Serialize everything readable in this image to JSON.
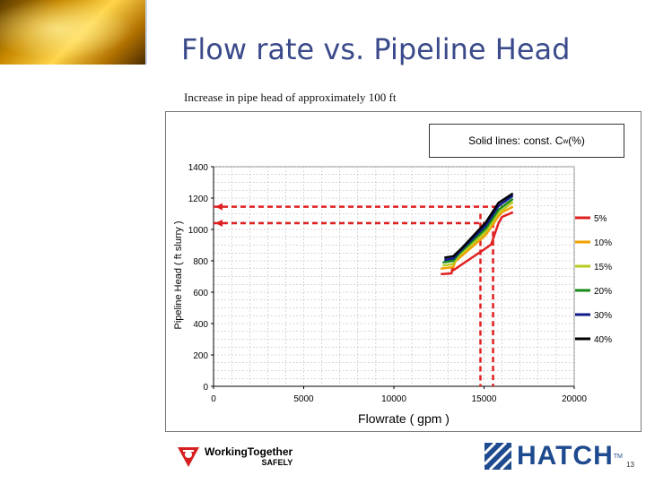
{
  "slide": {
    "title": "Flow rate vs. Pipeline Head",
    "subtitle": "Increase in pipe head of approximately 100 ft",
    "page_number": "13",
    "footer_left": {
      "line1": "WorkingTogether",
      "line2": "SAFELY"
    },
    "footer_right": "HATCH",
    "footer_right_tm": "TM"
  },
  "note": {
    "prefix": "Solid lines: const. C",
    "subscript": "w",
    "suffix": " (%)"
  },
  "chart_data": {
    "type": "line",
    "title": "",
    "xlabel": "Flowrate ( gpm )",
    "ylabel": "Pipeline Head ( ft slurry )",
    "xlim": [
      0,
      20000
    ],
    "ylim": [
      0,
      1400
    ],
    "x_ticks": [
      "0",
      "5000",
      "10000",
      "15000",
      "20000"
    ],
    "y_ticks": [
      "0",
      "200",
      "400",
      "600",
      "800",
      "1000",
      "1200",
      "1400"
    ],
    "grid": true,
    "legend_position": "right",
    "series": [
      {
        "name": "5%",
        "color": "#e02020",
        "points": [
          [
            12600,
            715
          ],
          [
            13200,
            720
          ],
          [
            13250,
            760
          ],
          [
            13300,
            740
          ],
          [
            15100,
            880
          ],
          [
            15400,
            905
          ],
          [
            15800,
            1040
          ],
          [
            16000,
            1080
          ],
          [
            16600,
            1110
          ]
        ]
      },
      {
        "name": "10%",
        "color": "#f0a000",
        "points": [
          [
            12600,
            750
          ],
          [
            13300,
            760
          ],
          [
            13400,
            795
          ],
          [
            15100,
            965
          ],
          [
            15800,
            1085
          ],
          [
            16000,
            1110
          ],
          [
            16600,
            1145
          ]
        ]
      },
      {
        "name": "15%",
        "color": "#b8cc20",
        "points": [
          [
            12700,
            770
          ],
          [
            13300,
            780
          ],
          [
            13500,
            820
          ],
          [
            15100,
            985
          ],
          [
            15800,
            1105
          ],
          [
            16600,
            1175
          ]
        ]
      },
      {
        "name": "20%",
        "color": "#1a8a1a",
        "points": [
          [
            12700,
            790
          ],
          [
            13300,
            800
          ],
          [
            13600,
            845
          ],
          [
            15100,
            1005
          ],
          [
            15800,
            1125
          ],
          [
            16600,
            1195
          ]
        ]
      },
      {
        "name": "30%",
        "color": "#101a8a",
        "points": [
          [
            12800,
            805
          ],
          [
            13300,
            815
          ],
          [
            13700,
            865
          ],
          [
            15100,
            1025
          ],
          [
            15800,
            1150
          ],
          [
            16600,
            1215
          ]
        ]
      },
      {
        "name": "40%",
        "color": "#000000",
        "points": [
          [
            12800,
            820
          ],
          [
            13300,
            830
          ],
          [
            13800,
            885
          ],
          [
            15100,
            1045
          ],
          [
            15800,
            1170
          ],
          [
            16600,
            1230
          ]
        ]
      }
    ],
    "annotations": {
      "color": "#e02020",
      "horizontal_lines": [
        {
          "y": 1145,
          "x_end": 16000
        },
        {
          "y": 1040,
          "x_end": 15600
        }
      ],
      "vertical_lines": [
        {
          "x": 14800,
          "y_top": 1100
        },
        {
          "x": 15500,
          "y_top": 1045
        }
      ]
    }
  }
}
